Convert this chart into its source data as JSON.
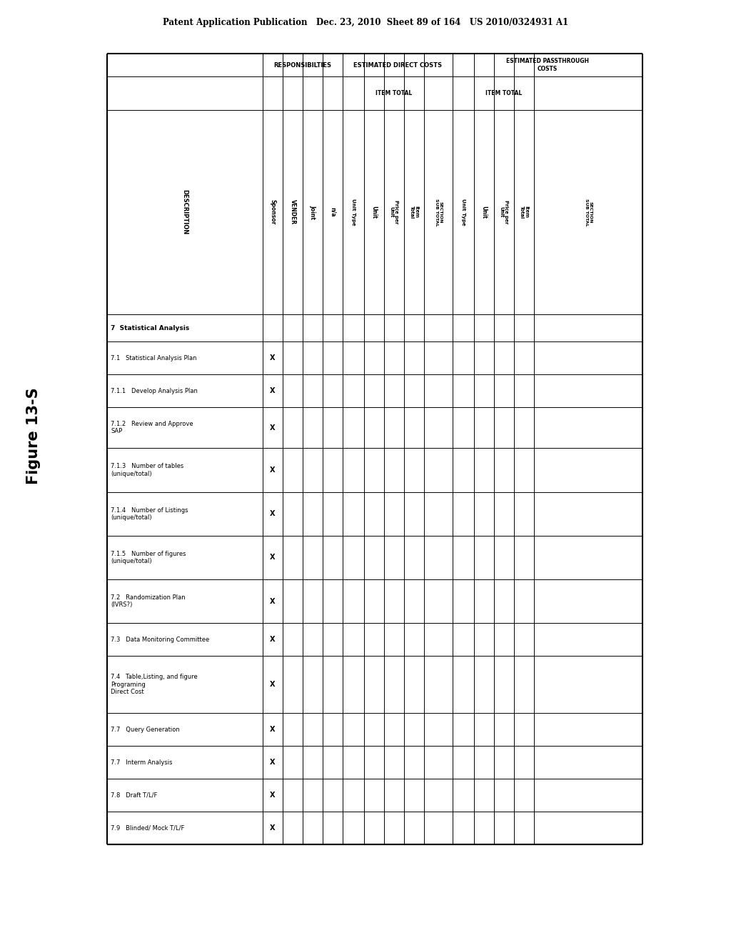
{
  "header_line": "Patent Application Publication   Dec. 23, 2010  Sheet 89 of 164   US 2010/0324931 A1",
  "figure_label": "Figure 13-S",
  "bg_color": "#ffffff",
  "rows": [
    {
      "desc": "7  Statistical Analysis",
      "bold": true,
      "sponsor": false
    },
    {
      "desc": "7.1   Statistical Analysis Plan",
      "bold": false,
      "sponsor": true
    },
    {
      "desc": "7.1.1   Develop Analysis Plan",
      "bold": false,
      "sponsor": true
    },
    {
      "desc": "7.1.2   Review and Approve\nSAP",
      "bold": false,
      "sponsor": true
    },
    {
      "desc": "7.1.3   Number of tables\n(unique/total)",
      "bold": false,
      "sponsor": true
    },
    {
      "desc": "7.1.4   Number of Listings\n(unique/total)",
      "bold": false,
      "sponsor": true
    },
    {
      "desc": "7.1.5   Number of figures\n(unique/total)",
      "bold": false,
      "sponsor": true
    },
    {
      "desc": "7.2   Randomization Plan\n(IVRS?)",
      "bold": false,
      "sponsor": true
    },
    {
      "desc": "7.3   Data Monitoring Committee",
      "bold": false,
      "sponsor": true
    },
    {
      "desc": "7.4   Table,Listing, and figure\nPrograming\nDirect Cost",
      "bold": false,
      "sponsor": true
    },
    {
      "desc": "7.7   Query Generation",
      "bold": false,
      "sponsor": true
    },
    {
      "desc": "7.7   Interm Analysis",
      "bold": false,
      "sponsor": true
    },
    {
      "desc": "7.8   Draft T/L/F",
      "bold": false,
      "sponsor": true
    },
    {
      "desc": "7.9   Blinded/ Mock T/L/F",
      "bold": false,
      "sponsor": true
    }
  ],
  "row_heights_rel": [
    1.0,
    1.2,
    1.2,
    1.5,
    1.6,
    1.6,
    1.6,
    1.6,
    1.2,
    2.1,
    1.2,
    1.2,
    1.2,
    1.2
  ]
}
